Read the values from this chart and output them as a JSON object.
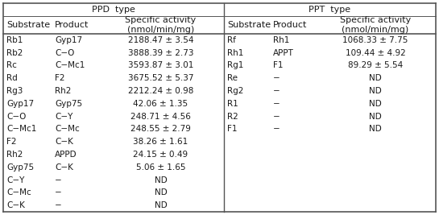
{
  "ppd_header": "PPD  type",
  "ppt_header": "PPT  type",
  "col_heads_ppd": [
    "Substrate",
    "Product",
    "Specific activity\n(nmol/min/mg)"
  ],
  "col_heads_ppt": [
    "Substrate",
    "Product",
    "Specific activity\n(nmol/min/mg)"
  ],
  "ppd_rows": [
    [
      "Rb1",
      "Gyp17",
      "2188.47 ± 3.54"
    ],
    [
      "Rb2",
      "C−O",
      "3888.39 ± 2.73"
    ],
    [
      "Rc",
      "C−Mc1",
      "3593.87 ± 3.01"
    ],
    [
      "Rd",
      "F2",
      "3675.52 ± 5.37"
    ],
    [
      "Rg3",
      "Rh2",
      "2212.24 ± 0.98"
    ],
    [
      "Gyp17",
      "Gyp75",
      "42.06 ± 1.35"
    ],
    [
      "C−O",
      "C−Y",
      "248.71 ± 4.56"
    ],
    [
      "C−Mc1",
      "C−Mc",
      "248.55 ± 2.79"
    ],
    [
      "F2",
      "C−K",
      "38.26 ± 1.61"
    ],
    [
      "Rh2",
      "APPD",
      "24.15 ± 0.49"
    ],
    [
      "Gyp75",
      "C−K",
      "5.06 ± 1.65"
    ],
    [
      "C−Y",
      "−",
      "ND"
    ],
    [
      "C−Mc",
      "−",
      "ND"
    ],
    [
      "C−K",
      "−",
      "ND"
    ]
  ],
  "ppt_rows": [
    [
      "Rf",
      "Rh1",
      "1068.33 ± 7.75"
    ],
    [
      "Rh1",
      "APPT",
      "109.44 ± 4.92"
    ],
    [
      "Rg1",
      "F1",
      "89.29 ± 5.54"
    ],
    [
      "Re",
      "−",
      "ND"
    ],
    [
      "Rg2",
      "−",
      "ND"
    ],
    [
      "R1",
      "−",
      "ND"
    ],
    [
      "R2",
      "−",
      "ND"
    ],
    [
      "F1",
      "−",
      "ND"
    ]
  ],
  "bg_color": "#ffffff",
  "text_color": "#1a1a1a",
  "line_color": "#555555",
  "header_fontsize": 8.0,
  "cell_fontsize": 7.5
}
